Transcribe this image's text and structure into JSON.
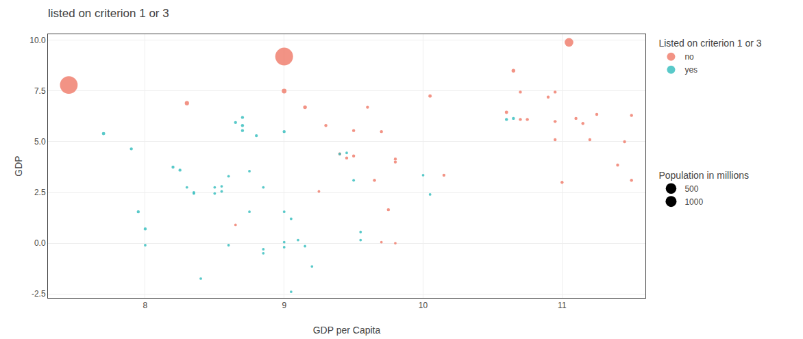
{
  "chart_data": {
    "type": "scatter",
    "title": "listed on criterion 1 or 3",
    "x_label": "GDP per Capita",
    "y_label": "GDP",
    "xlim": [
      7.3,
      11.6
    ],
    "ylim": [
      -2.7,
      10.3
    ],
    "xticks": [
      8,
      9,
      10,
      11
    ],
    "yticks": [
      -2.5,
      {
        "value": 0.0,
        "label": "0.0"
      },
      2.5,
      {
        "value": 5.0,
        "label": "5.0"
      },
      7.5,
      {
        "value": 10.0,
        "label": "10.0"
      }
    ],
    "grid": true,
    "legend": "right",
    "legend_title": "Listed on criterion 1 or 3",
    "marker": "circle",
    "series": [
      {
        "name": "no",
        "color": "#F08070",
        "x": [
          7.45,
          9.0,
          11.05,
          8.3,
          9.0,
          9.15,
          9.3,
          9.5,
          9.4,
          9.45,
          9.5,
          9.6,
          9.7,
          9.8,
          9.8,
          9.65,
          9.75,
          9.7,
          9.8,
          10.05,
          10.15,
          10.6,
          10.65,
          10.7,
          10.7,
          10.75,
          10.9,
          10.95,
          10.95,
          10.95,
          11.0,
          11.1,
          11.15,
          11.2,
          11.25,
          11.4,
          11.45,
          11.5,
          11.5,
          9.25,
          8.65
        ],
        "values": [
          7.8,
          9.2,
          9.9,
          6.9,
          7.5,
          6.7,
          5.8,
          5.55,
          4.4,
          4.2,
          4.3,
          6.7,
          5.5,
          4.0,
          4.15,
          3.1,
          1.65,
          0.05,
          -0.0,
          7.25,
          3.35,
          6.45,
          8.5,
          7.45,
          6.1,
          6.1,
          7.2,
          7.45,
          6.0,
          5.1,
          3.0,
          6.15,
          5.9,
          5.1,
          6.35,
          3.85,
          5.0,
          6.3,
          3.1,
          2.55,
          0.9
        ],
        "pop": [
          1380,
          1400,
          330,
          80,
          100,
          60,
          40,
          40,
          40,
          40,
          40,
          40,
          40,
          40,
          40,
          40,
          40,
          30,
          30,
          50,
          40,
          50,
          60,
          40,
          40,
          40,
          40,
          40,
          40,
          40,
          40,
          40,
          40,
          40,
          40,
          40,
          40,
          40,
          40,
          30,
          30
        ]
      },
      {
        "name": "yes",
        "color": "#3CBFBF",
        "x": [
          7.7,
          7.9,
          7.95,
          8.0,
          8.0,
          8.2,
          8.25,
          8.3,
          8.35,
          8.35,
          8.4,
          8.5,
          8.5,
          8.55,
          8.55,
          8.6,
          8.6,
          8.65,
          8.7,
          8.7,
          8.7,
          8.75,
          8.75,
          8.8,
          8.85,
          8.85,
          8.85,
          9.0,
          9.0,
          9.0,
          9.0,
          9.05,
          9.05,
          9.1,
          9.15,
          9.2,
          9.4,
          9.45,
          9.5,
          9.55,
          9.55,
          10.0,
          10.05,
          10.6,
          10.65
        ],
        "values": [
          5.4,
          4.65,
          1.55,
          0.7,
          -0.1,
          3.75,
          3.6,
          2.75,
          2.5,
          2.45,
          -1.75,
          2.75,
          2.45,
          2.8,
          2.55,
          -0.1,
          3.3,
          5.95,
          5.8,
          5.55,
          6.2,
          3.55,
          1.55,
          5.3,
          2.75,
          -0.3,
          -0.5,
          5.5,
          1.55,
          0.05,
          -0.2,
          -2.4,
          1.2,
          0.15,
          -0.15,
          -1.15,
          4.4,
          4.45,
          3.1,
          0.55,
          0.15,
          3.35,
          2.4,
          6.1,
          6.15
        ],
        "pop": [
          50,
          40,
          40,
          40,
          30,
          40,
          40,
          30,
          30,
          30,
          30,
          30,
          30,
          30,
          30,
          30,
          30,
          40,
          40,
          40,
          40,
          30,
          30,
          40,
          30,
          30,
          30,
          40,
          30,
          30,
          30,
          30,
          30,
          30,
          30,
          30,
          30,
          30,
          30,
          30,
          30,
          30,
          30,
          40,
          40
        ]
      }
    ],
    "size_legend": {
      "title": "Population in millions",
      "values": [
        500,
        1000
      ]
    }
  }
}
